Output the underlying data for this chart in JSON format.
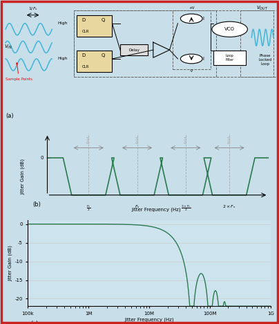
{
  "bg_color": "#c8dfe9",
  "panel_bg": "#cde4ee",
  "border_color": "#cc2222",
  "green": "#2a7a50",
  "blue_wave": "#4ab8d8",
  "gray_dash": "#888888",
  "fold_color": "#aaaaaa",
  "arrow_color": "#888888",
  "fig_w": 4.04,
  "fig_h": 4.68,
  "dpi": 100,
  "c_yticks": [
    0,
    -5,
    -10,
    -15,
    -20
  ],
  "c_yticklabels": [
    "0",
    "-5",
    "-10",
    "-15",
    "-20"
  ],
  "c_xtick_labels": [
    "100k",
    "1M",
    "10M",
    "100M",
    "1G"
  ],
  "c_xtick_values": [
    100000.0,
    1000000.0,
    10000000.0,
    100000000.0,
    1000000000.0
  ],
  "ylabel_b": "Jitter Gain (dB)",
  "xlabel_b": "Jitter Frequency (Hz)",
  "ylabel_c": "Jitter Gain (dB)",
  "xlabel_c": "Jitter Frequency (Hz)"
}
